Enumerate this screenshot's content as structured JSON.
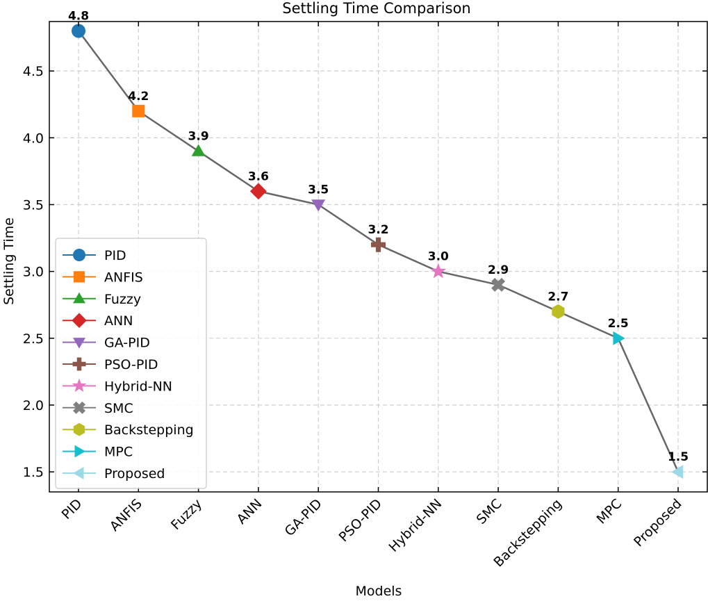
{
  "chart_data": {
    "type": "line",
    "title": "Settling Time Comparison",
    "xlabel": "Models",
    "ylabel": "Settling Time",
    "categories": [
      "PID",
      "ANFIS",
      "Fuzzy",
      "ANN",
      "GA-PID",
      "PSO-PID",
      "Hybrid-NN",
      "SMC",
      "Backstepping",
      "MPC",
      "Proposed"
    ],
    "values": [
      4.8,
      4.2,
      3.9,
      3.6,
      3.5,
      3.2,
      3.0,
      2.9,
      2.7,
      2.5,
      1.5
    ],
    "value_labels": [
      "4.8",
      "4.2",
      "3.9",
      "3.6",
      "3.5",
      "3.2",
      "3.0",
      "2.9",
      "2.7",
      "2.5",
      "1.5"
    ],
    "markers": [
      "circle",
      "square",
      "triangle-up",
      "diamond",
      "triangle-down",
      "plus",
      "star",
      "x",
      "hexagon",
      "triangle-right",
      "triangle-left"
    ],
    "colors": [
      "#1f77b4",
      "#ff7f0e",
      "#2ca02c",
      "#d62728",
      "#9467bd",
      "#8c564b",
      "#e377c2",
      "#7f7f7f",
      "#bcbd22",
      "#17becf",
      "#9edae5"
    ],
    "line_color": "#666666",
    "ylim": [
      1.35,
      4.87
    ],
    "yticks": [
      1.5,
      2.0,
      2.5,
      3.0,
      3.5,
      4.0,
      4.5
    ],
    "ytick_labels": [
      "1.5",
      "2.0",
      "2.5",
      "3.0",
      "3.5",
      "4.0",
      "4.5"
    ],
    "grid": true,
    "legend_position": "lower-left",
    "legend": [
      "PID",
      "ANFIS",
      "Fuzzy",
      "ANN",
      "GA-PID",
      "PSO-PID",
      "Hybrid-NN",
      "SMC",
      "Backstepping",
      "MPC",
      "Proposed"
    ]
  }
}
